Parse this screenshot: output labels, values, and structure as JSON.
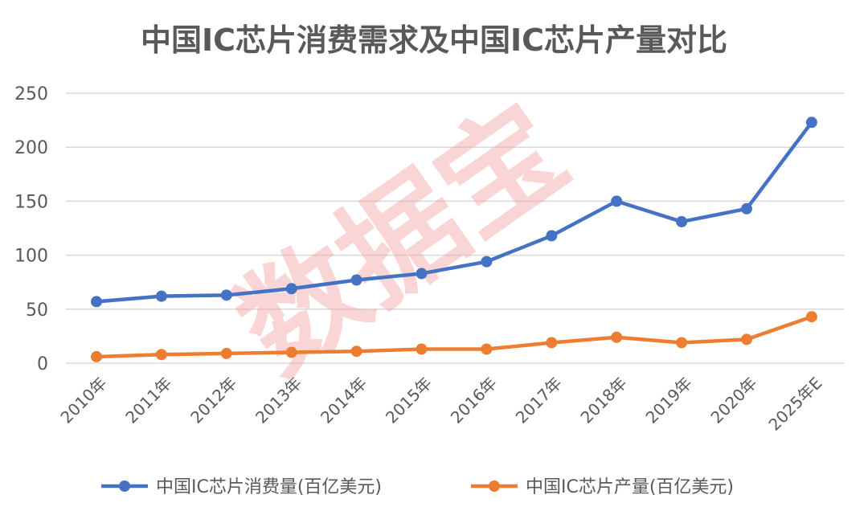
{
  "chart_data": {
    "type": "line",
    "title": "中国IC芯片消费需求及中国IC芯片产量对比",
    "categories": [
      "2010年",
      "2011年",
      "2012年",
      "2013年",
      "2014年",
      "2015年",
      "2016年",
      "2017年",
      "2018年",
      "2019年",
      "2020年",
      "2025年E"
    ],
    "ylim": [
      0,
      250
    ],
    "yticks": [
      0,
      50,
      100,
      150,
      200,
      250
    ],
    "grid": true,
    "legend_position": "bottom",
    "series": [
      {
        "name": "中国IC芯片消费量(百亿美元)",
        "color": "#4472c4",
        "values": [
          57,
          62,
          63,
          69,
          77,
          83,
          94,
          118,
          150,
          131,
          143,
          223
        ]
      },
      {
        "name": "中国IC芯片产量(百亿美元)",
        "color": "#ed7d31",
        "values": [
          6,
          8,
          9,
          10,
          11,
          13,
          13,
          19,
          24,
          19,
          22,
          43
        ]
      }
    ],
    "watermark": "数据宝"
  }
}
